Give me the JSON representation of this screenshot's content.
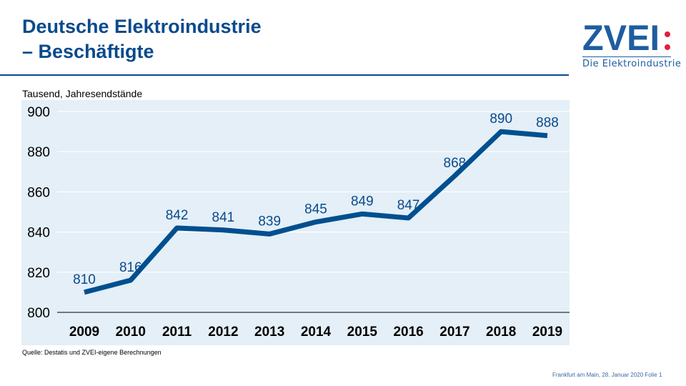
{
  "header": {
    "title_line1": "Deutsche Elektroindustrie",
    "title_line2": "– Beschäftigte"
  },
  "logo": {
    "wordmark": "ZVEI:",
    "tagline": "Die Elektroindustrie",
    "colors": {
      "blue": "#1e5da0",
      "red": "#e0203c"
    }
  },
  "chart_data": {
    "type": "line",
    "title": "",
    "ylabel": "Tausend, Jahresendstände",
    "xlabel": "",
    "categories": [
      "2009",
      "2010",
      "2011",
      "2012",
      "2013",
      "2014",
      "2015",
      "2016",
      "2017",
      "2018",
      "2019"
    ],
    "values": [
      810,
      816,
      842,
      841,
      839,
      845,
      849,
      847,
      868,
      890,
      888
    ],
    "ylim": [
      800,
      900
    ],
    "yticks": [
      800,
      820,
      840,
      860,
      880,
      900
    ],
    "grid": true,
    "line_color": "#004f8f",
    "background": "#e4eff7"
  },
  "source": "Quelle: Destatis und ZVEI-eigene Berechnungen",
  "footer": "Frankfurt am Main, 28. Januar 2020  Folie 1"
}
